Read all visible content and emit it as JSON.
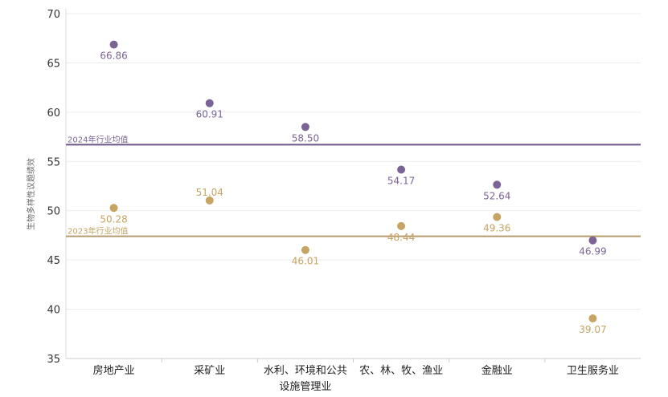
{
  "chart_data": {
    "type": "scatter",
    "ylabel": "生物多样性议题绩效",
    "ylim": [
      35,
      70
    ],
    "yticks": [
      35,
      40,
      45,
      50,
      55,
      60,
      65,
      70
    ],
    "grid": "horizontal",
    "categories": [
      {
        "lines": [
          "房地产业"
        ]
      },
      {
        "lines": [
          "采矿业"
        ]
      },
      {
        "lines": [
          "水利、环境和公共",
          "设施管理业"
        ]
      },
      {
        "lines": [
          "农、林、牧、渔业"
        ]
      },
      {
        "lines": [
          "金融业"
        ]
      },
      {
        "lines": [
          "卫生服务业"
        ]
      }
    ],
    "series": [
      {
        "color": "#7b6495",
        "values": [
          66.86,
          60.91,
          58.5,
          54.17,
          52.64,
          46.99
        ],
        "labels": [
          "66.86",
          "60.91",
          "58.50",
          "54.17",
          "52.64",
          "46.99"
        ],
        "label_pos": [
          "below",
          "below",
          "below",
          "below",
          "below",
          "below"
        ]
      },
      {
        "color": "#c6a464",
        "values": [
          50.28,
          51.04,
          46.01,
          48.44,
          49.36,
          39.07
        ],
        "labels": [
          "50.28",
          "51.04",
          "46.01",
          "48.44",
          "49.36",
          "39.07"
        ],
        "label_pos": [
          "below",
          "above",
          "below",
          "below",
          "below",
          "below"
        ]
      }
    ],
    "reference_lines": [
      {
        "label": "2024年行业均值",
        "value": 56.7,
        "color": "#6d5587",
        "text_color": "#7b6495"
      },
      {
        "label": "2023年行业均值",
        "value": 47.4,
        "color": "#b59a6d",
        "text_color": "#c6a464"
      }
    ]
  }
}
